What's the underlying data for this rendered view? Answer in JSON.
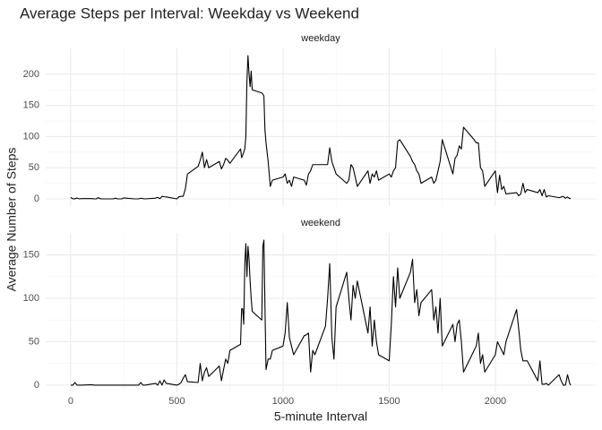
{
  "title": "Average Steps per Interval: Weekday vs Weekend",
  "x_label": "5-minute Interval",
  "y_label": "Average Number of Steps",
  "chart_data": [
    {
      "type": "line",
      "facet_label": "weekday",
      "color": "#000000",
      "x": [
        0,
        10,
        20,
        30,
        40,
        50,
        100,
        110,
        120,
        130,
        140,
        150,
        200,
        210,
        220,
        230,
        240,
        250,
        300,
        310,
        320,
        330,
        340,
        350,
        400,
        410,
        420,
        430,
        440,
        450,
        500,
        510,
        520,
        530,
        540,
        550,
        600,
        610,
        620,
        630,
        640,
        650,
        700,
        710,
        720,
        730,
        740,
        750,
        800,
        805,
        810,
        815,
        820,
        825,
        830,
        835,
        840,
        845,
        850,
        855,
        900,
        905,
        910,
        915,
        920,
        930,
        940,
        950,
        1000,
        1010,
        1020,
        1030,
        1040,
        1050,
        1100,
        1110,
        1120,
        1130,
        1140,
        1150,
        1200,
        1210,
        1220,
        1230,
        1240,
        1250,
        1300,
        1310,
        1320,
        1330,
        1340,
        1350,
        1400,
        1410,
        1420,
        1430,
        1440,
        1450,
        1500,
        1510,
        1520,
        1530,
        1540,
        1550,
        1600,
        1610,
        1620,
        1630,
        1640,
        1650,
        1700,
        1710,
        1720,
        1730,
        1740,
        1750,
        1800,
        1810,
        1820,
        1830,
        1840,
        1850,
        1900,
        1910,
        1920,
        1930,
        1940,
        1950,
        2000,
        2010,
        2020,
        2030,
        2040,
        2050,
        2100,
        2110,
        2120,
        2130,
        2140,
        2150,
        2200,
        2210,
        2220,
        2230,
        2240,
        2250,
        2300,
        2310,
        2320,
        2330,
        2340,
        2350,
        2355
      ],
      "values": [
        2.3,
        0.2,
        0.1,
        1.5,
        0,
        0.4,
        0.5,
        0.1,
        0,
        2,
        0.2,
        0,
        0,
        1.2,
        0,
        0,
        0,
        1.5,
        0,
        0,
        0,
        1.1,
        0.4,
        0,
        1.2,
        2.5,
        0.4,
        4,
        3.4,
        3.1,
        0,
        3.5,
        4,
        4.2,
        16,
        40,
        52,
        62,
        75,
        50,
        63,
        50,
        60,
        48,
        55,
        65,
        62,
        57,
        80,
        66,
        70,
        75,
        80,
        100,
        190,
        230,
        200,
        180,
        205,
        175,
        170,
        168,
        165,
        110,
        90,
        60,
        20,
        30,
        35,
        40,
        25,
        30,
        20,
        35,
        30,
        22,
        40,
        45,
        55,
        55,
        55,
        55,
        82,
        60,
        50,
        40,
        25,
        30,
        55,
        50,
        35,
        20,
        45,
        25,
        40,
        35,
        45,
        30,
        40,
        35,
        45,
        50,
        92,
        95,
        68,
        60,
        55,
        45,
        40,
        25,
        35,
        25,
        30,
        45,
        60,
        95,
        40,
        65,
        70,
        85,
        80,
        115,
        95,
        90,
        90,
        50,
        45,
        20,
        45,
        10,
        38,
        15,
        20,
        8,
        10,
        5,
        8,
        25,
        10,
        15,
        10,
        15,
        5,
        15,
        3,
        5,
        2,
        3,
        4,
        1,
        3,
        0.5,
        1
      ],
      "xlim": [
        -117.75,
        2472.75
      ],
      "xticks": [
        0,
        500,
        1000,
        1500,
        2000
      ],
      "ylim": [
        -11.5,
        241.5
      ],
      "yticks": [
        0,
        50,
        100,
        150,
        200
      ],
      "grid": true
    },
    {
      "type": "line",
      "facet_label": "weekend",
      "color": "#000000",
      "x": [
        0,
        10,
        20,
        30,
        40,
        50,
        100,
        110,
        120,
        130,
        140,
        150,
        200,
        210,
        220,
        230,
        240,
        250,
        300,
        310,
        320,
        330,
        340,
        350,
        400,
        410,
        420,
        430,
        440,
        450,
        500,
        510,
        520,
        530,
        540,
        550,
        600,
        610,
        620,
        630,
        640,
        650,
        700,
        710,
        720,
        730,
        740,
        750,
        800,
        805,
        810,
        815,
        820,
        825,
        830,
        835,
        840,
        845,
        850,
        855,
        900,
        905,
        910,
        915,
        920,
        930,
        940,
        950,
        1000,
        1010,
        1020,
        1030,
        1040,
        1050,
        1100,
        1110,
        1120,
        1130,
        1140,
        1150,
        1200,
        1210,
        1220,
        1230,
        1240,
        1250,
        1300,
        1310,
        1320,
        1330,
        1340,
        1350,
        1400,
        1410,
        1420,
        1430,
        1440,
        1450,
        1500,
        1510,
        1520,
        1530,
        1540,
        1550,
        1600,
        1610,
        1620,
        1630,
        1640,
        1650,
        1700,
        1710,
        1720,
        1730,
        1740,
        1750,
        1800,
        1810,
        1820,
        1830,
        1840,
        1850,
        1900,
        1910,
        1920,
        1930,
        1940,
        1950,
        2000,
        2010,
        2020,
        2030,
        2040,
        2050,
        2100,
        2110,
        2120,
        2130,
        2140,
        2150,
        2200,
        2210,
        2220,
        2230,
        2240,
        2250,
        2300,
        2310,
        2320,
        2330,
        2340,
        2350,
        2355
      ],
      "values": [
        0,
        0,
        3,
        0,
        0,
        0,
        0.5,
        0,
        0,
        0,
        0,
        0,
        0,
        0,
        0,
        0,
        0,
        0,
        0,
        0,
        0,
        3,
        0,
        0,
        2,
        0,
        5,
        0,
        6,
        2,
        0,
        1,
        3,
        8,
        12,
        4,
        3,
        25,
        5,
        15,
        20,
        10,
        22,
        5,
        18,
        30,
        25,
        40,
        47,
        88,
        88,
        70,
        140,
        163,
        125,
        160,
        145,
        120,
        100,
        85,
        75,
        160,
        167,
        90,
        18,
        30,
        30,
        40,
        45,
        60,
        95,
        55,
        45,
        35,
        57,
        58,
        60,
        15,
        40,
        35,
        68,
        100,
        140,
        55,
        30,
        90,
        130,
        100,
        75,
        115,
        100,
        120,
        60,
        90,
        45,
        75,
        50,
        35,
        28,
        70,
        125,
        90,
        135,
        100,
        130,
        145,
        95,
        110,
        80,
        95,
        110,
        75,
        90,
        60,
        100,
        45,
        70,
        50,
        70,
        75,
        50,
        15,
        40,
        45,
        60,
        25,
        35,
        15,
        35,
        50,
        45,
        40,
        35,
        50,
        87,
        65,
        40,
        28,
        28,
        28,
        5,
        28,
        1,
        1,
        2,
        0,
        12,
        5,
        0,
        0,
        12,
        2,
        0
      ],
      "xlim": [
        -117.75,
        2472.75
      ],
      "xticks": [
        0,
        500,
        1000,
        1500,
        2000
      ],
      "ylim": [
        -8.35,
        175.35
      ],
      "yticks": [
        0,
        50,
        100,
        150
      ],
      "grid": true
    }
  ]
}
